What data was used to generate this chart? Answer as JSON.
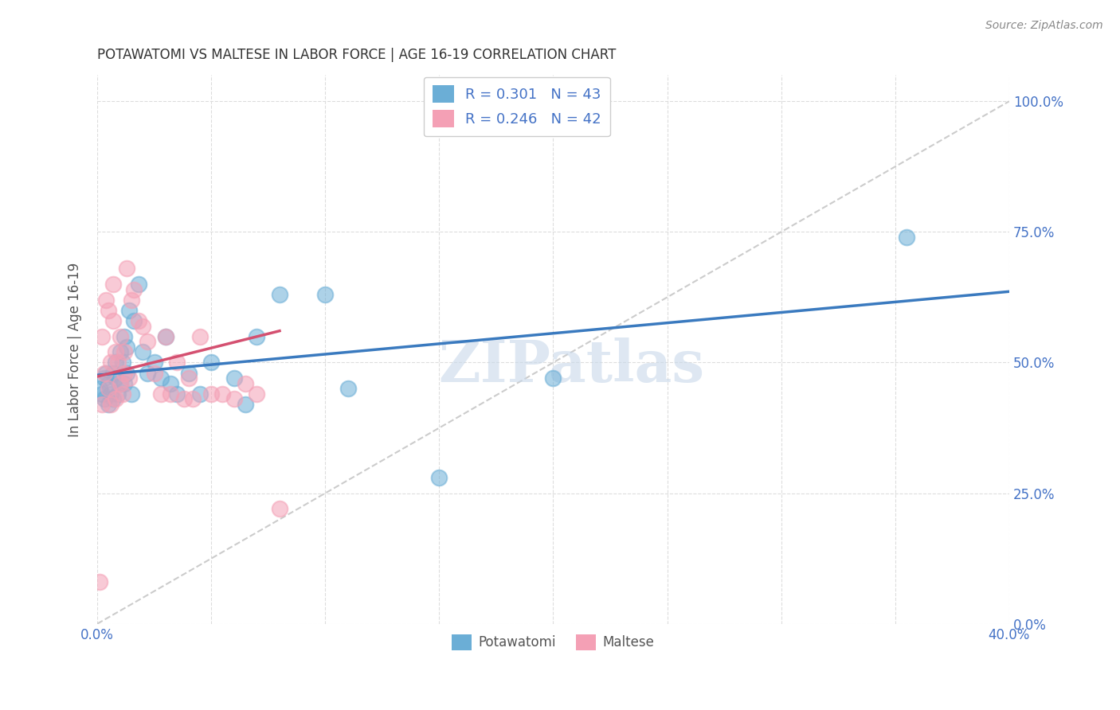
{
  "title": "POTAWATOMI VS MALTESE IN LABOR FORCE | AGE 16-19 CORRELATION CHART",
  "source": "Source: ZipAtlas.com",
  "ylabel": "In Labor Force | Age 16-19",
  "xlim": [
    0.0,
    0.4
  ],
  "ylim": [
    0.0,
    1.05
  ],
  "x_ticks": [
    0.0,
    0.05,
    0.1,
    0.15,
    0.2,
    0.25,
    0.3,
    0.35,
    0.4
  ],
  "x_tick_labels": [
    "0.0%",
    "",
    "",
    "",
    "",
    "",
    "",
    "",
    "40.0%"
  ],
  "y_ticks_right": [
    0.0,
    0.25,
    0.5,
    0.75,
    1.0
  ],
  "y_tick_labels_right": [
    "0.0%",
    "25.0%",
    "50.0%",
    "75.0%",
    "100.0%"
  ],
  "blue_color": "#6baed6",
  "pink_color": "#f4a0b5",
  "blue_line_color": "#3a7abf",
  "pink_line_color": "#d45070",
  "diagonal_color": "#cccccc",
  "R_blue": 0.301,
  "N_blue": 43,
  "R_pink": 0.246,
  "N_pink": 42,
  "watermark": "ZIPatlas",
  "potawatomi_x": [
    0.001,
    0.002,
    0.003,
    0.003,
    0.004,
    0.005,
    0.005,
    0.006,
    0.007,
    0.007,
    0.008,
    0.008,
    0.009,
    0.01,
    0.01,
    0.011,
    0.012,
    0.012,
    0.013,
    0.013,
    0.014,
    0.015,
    0.016,
    0.018,
    0.02,
    0.022,
    0.025,
    0.028,
    0.03,
    0.032,
    0.035,
    0.04,
    0.045,
    0.05,
    0.06,
    0.065,
    0.07,
    0.08,
    0.1,
    0.11,
    0.15,
    0.2,
    0.355
  ],
  "potawatomi_y": [
    0.45,
    0.44,
    0.47,
    0.43,
    0.48,
    0.42,
    0.46,
    0.44,
    0.48,
    0.43,
    0.5,
    0.47,
    0.44,
    0.52,
    0.46,
    0.5,
    0.55,
    0.46,
    0.48,
    0.53,
    0.6,
    0.44,
    0.58,
    0.65,
    0.52,
    0.48,
    0.5,
    0.47,
    0.55,
    0.46,
    0.44,
    0.48,
    0.44,
    0.5,
    0.47,
    0.42,
    0.55,
    0.63,
    0.63,
    0.45,
    0.28,
    0.47,
    0.74
  ],
  "maltese_x": [
    0.001,
    0.002,
    0.002,
    0.003,
    0.004,
    0.005,
    0.005,
    0.006,
    0.006,
    0.007,
    0.007,
    0.008,
    0.008,
    0.009,
    0.01,
    0.01,
    0.011,
    0.012,
    0.012,
    0.013,
    0.014,
    0.015,
    0.016,
    0.018,
    0.02,
    0.022,
    0.025,
    0.028,
    0.03,
    0.032,
    0.035,
    0.038,
    0.04,
    0.042,
    0.045,
    0.05,
    0.055,
    0.06,
    0.065,
    0.07,
    0.08,
    0.15
  ],
  "maltese_y": [
    0.08,
    0.42,
    0.55,
    0.48,
    0.62,
    0.45,
    0.6,
    0.5,
    0.42,
    0.65,
    0.58,
    0.43,
    0.52,
    0.5,
    0.55,
    0.46,
    0.44,
    0.52,
    0.48,
    0.68,
    0.47,
    0.62,
    0.64,
    0.58,
    0.57,
    0.54,
    0.48,
    0.44,
    0.55,
    0.44,
    0.5,
    0.43,
    0.47,
    0.43,
    0.55,
    0.44,
    0.44,
    0.43,
    0.46,
    0.44,
    0.22,
    1.0
  ],
  "blue_line_x": [
    0.0,
    0.4
  ],
  "blue_line_y": [
    0.44,
    0.75
  ],
  "pink_line_x": [
    0.0,
    0.08
  ],
  "pink_line_y": [
    0.44,
    0.65
  ]
}
